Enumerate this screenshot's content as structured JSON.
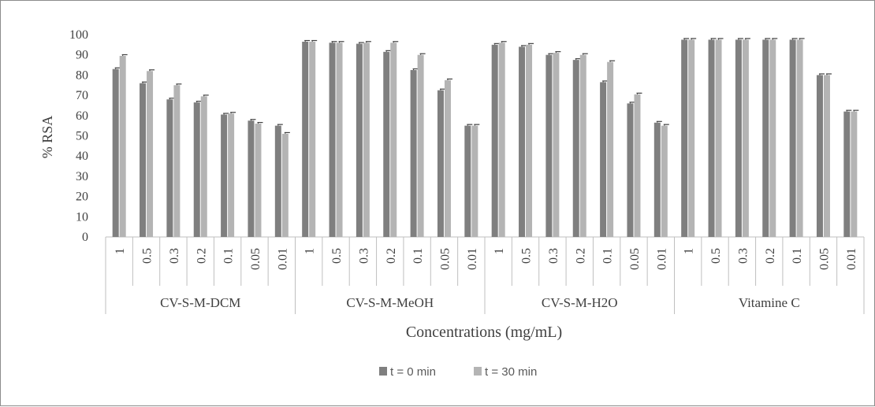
{
  "chart_data": {
    "type": "bar",
    "ylabel": "% RSA",
    "xlabel": "Concentrations (mg/mL)",
    "ylim": [
      0,
      100
    ],
    "y_ticks": [
      0,
      10,
      20,
      30,
      40,
      50,
      60,
      70,
      80,
      90,
      100
    ],
    "grid": false,
    "legend_position": "bottom",
    "groups": [
      {
        "name": "CV-S-M-DCM",
        "categories": [
          "1",
          "0.5",
          "0.3",
          "0.2",
          "0.1",
          "0.05",
          "0.01"
        ]
      },
      {
        "name": "CV-S-M-MeOH",
        "categories": [
          "1",
          "0.5",
          "0.3",
          "0.2",
          "0.1",
          "0.05",
          "0.01"
        ]
      },
      {
        "name": "CV-S-M-H2O",
        "categories": [
          "1",
          "0.5",
          "0.3",
          "0.2",
          "0.1",
          "0.05",
          "0.01"
        ]
      },
      {
        "name": "Vitamine C",
        "categories": [
          "1",
          "0.5",
          "0.3",
          "0.2",
          "0.1",
          "0.05",
          "0.01"
        ]
      }
    ],
    "series": [
      {
        "name": "t = 0 min",
        "color": "#7f7f7f",
        "values": [
          83,
          76,
          68,
          66.5,
          60.5,
          57.5,
          55,
          96.5,
          96,
          95.5,
          91.5,
          82.5,
          72.5,
          55,
          95,
          94,
          90,
          87.5,
          76.5,
          66,
          56.5,
          97.5,
          97.5,
          97.5,
          97.5,
          97.5,
          80,
          62
        ]
      },
      {
        "name": "t = 30 min",
        "color": "#b4b4b4",
        "values": [
          89.5,
          82,
          75,
          69.5,
          61,
          56,
          51,
          96.5,
          96,
          96,
          96,
          90,
          77.5,
          55,
          96,
          95,
          91,
          90,
          86.5,
          70.5,
          55,
          97.5,
          97.5,
          97.5,
          97.5,
          97.5,
          80,
          62
        ]
      }
    ]
  }
}
